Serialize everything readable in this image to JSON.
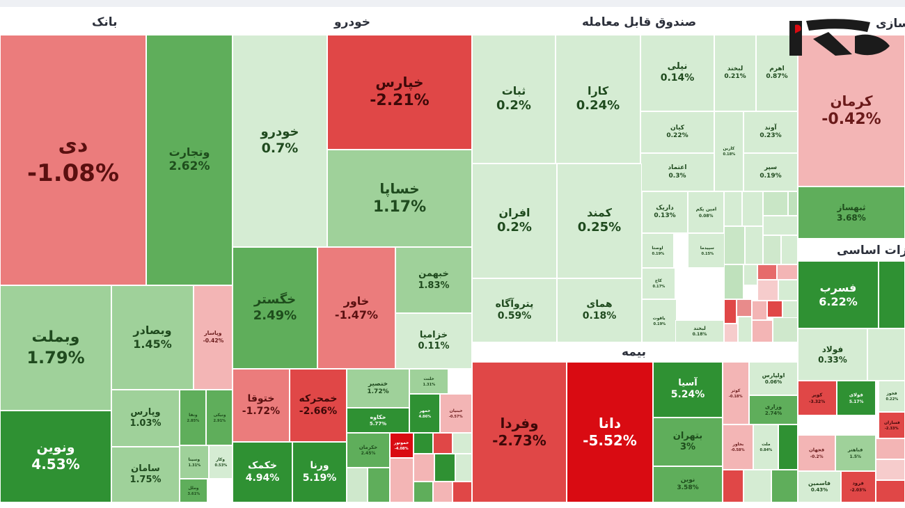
{
  "sectors": {
    "bank": "بانک",
    "khodro": "خودرو",
    "fund": "صندوق قابل معامله",
    "bimeh": "بیمه",
    "sazi": "سازی",
    "felezat": "فلزات اساسی"
  },
  "chart_data": {
    "type": "treemap",
    "colors": {
      "up_light": "#cfe8cc",
      "up_mid": "#9fd19a",
      "up_strong": "#5fae5b",
      "up_deep": "#2f9133",
      "down_light": "#f3b5b5",
      "down_mid": "#eb7c7c",
      "down_strong": "#e04747",
      "down_deep": "#d90b12"
    },
    "tiles": [
      {
        "sector": "bank",
        "name": "دی",
        "change": "-1.08%",
        "value": -1.08
      },
      {
        "sector": "bank",
        "name": "وتجارت",
        "change": "2.62%",
        "value": 2.62
      },
      {
        "sector": "bank",
        "name": "وبملت",
        "change": "1.79%",
        "value": 1.79
      },
      {
        "sector": "bank",
        "name": "وبصادر",
        "change": "1.45%",
        "value": 1.45
      },
      {
        "sector": "bank",
        "name": "وپاسار",
        "change": "-0.42%",
        "value": -0.42
      },
      {
        "sector": "bank",
        "name": "ونوین",
        "change": "4.53%",
        "value": 4.53
      },
      {
        "sector": "bank",
        "name": "وپارس",
        "change": "1.03%",
        "value": 1.03
      },
      {
        "sector": "bank",
        "name": "ونفا",
        "change": "2.85%",
        "value": 2.85
      },
      {
        "sector": "bank",
        "name": "ونیکی",
        "change": "2.91%",
        "value": 2.91
      },
      {
        "sector": "bank",
        "name": "وسینا",
        "change": "1.31%",
        "value": 1.31
      },
      {
        "sector": "bank",
        "name": "وکار",
        "change": "0.53%",
        "value": 0.53
      },
      {
        "sector": "bank",
        "name": "سامان",
        "change": "1.75%",
        "value": 1.75
      },
      {
        "sector": "bank",
        "name": "وملل",
        "change": "3.61%",
        "value": 3.61
      },
      {
        "sector": "khodro",
        "name": "خودرو",
        "change": "0.7%",
        "value": 0.7
      },
      {
        "sector": "khodro",
        "name": "خپارس",
        "change": "-2.21%",
        "value": -2.21
      },
      {
        "sector": "khodro",
        "name": "خساپا",
        "change": "1.17%",
        "value": 1.17
      },
      {
        "sector": "khodro",
        "name": "خگستر",
        "change": "2.49%",
        "value": 2.49
      },
      {
        "sector": "khodro",
        "name": "خاور",
        "change": "-1.47%",
        "value": -1.47
      },
      {
        "sector": "khodro",
        "name": "خبهمن",
        "change": "1.83%",
        "value": 1.83
      },
      {
        "sector": "khodro",
        "name": "خزامیا",
        "change": "0.11%",
        "value": 0.11
      },
      {
        "sector": "khodro",
        "name": "ختوقا",
        "change": "-1.72%",
        "value": -1.72
      },
      {
        "sector": "khodro",
        "name": "خمحرکه",
        "change": "-2.66%",
        "value": -2.66
      },
      {
        "sector": "khodro",
        "name": "خکمک",
        "change": "4.94%",
        "value": 4.94
      },
      {
        "sector": "khodro",
        "name": "ورنا",
        "change": "5.19%",
        "value": 5.19
      },
      {
        "sector": "khodro",
        "name": "خنصیر",
        "change": "1.72%",
        "value": 1.72
      },
      {
        "sector": "khodro",
        "name": "خلنت",
        "change": "1.31%",
        "value": 1.31
      },
      {
        "sector": "khodro",
        "name": "خکاوه",
        "change": "5.77%",
        "value": 5.77
      },
      {
        "sector": "khodro",
        "name": "خمهر",
        "change": "4.86%",
        "value": 4.86
      },
      {
        "sector": "khodro",
        "name": "خبنیان",
        "change": "-0.57%",
        "value": -0.57
      },
      {
        "sector": "khodro",
        "name": "خکرمان",
        "change": "2.45%",
        "value": 2.45
      },
      {
        "sector": "khodro",
        "name": "خموتور",
        "change": "-4.08%",
        "value": -4.08
      },
      {
        "sector": "fund",
        "name": "ثبات",
        "change": "0.2%",
        "value": 0.2
      },
      {
        "sector": "fund",
        "name": "کارا",
        "change": "0.24%",
        "value": 0.24
      },
      {
        "sector": "fund",
        "name": "نیلی",
        "change": "0.14%",
        "value": 0.14
      },
      {
        "sector": "fund",
        "name": "لبخند",
        "change": "0.21%",
        "value": 0.21
      },
      {
        "sector": "fund",
        "name": "اهرم",
        "change": "0.87%",
        "value": 0.87
      },
      {
        "sector": "fund",
        "name": "کیان",
        "change": "0.22%",
        "value": 0.22
      },
      {
        "sector": "fund",
        "name": "آوند",
        "change": "0.23%",
        "value": 0.23
      },
      {
        "sector": "fund",
        "name": "کارین",
        "change": "0.18%",
        "value": 0.18
      },
      {
        "sector": "fund",
        "name": "اعتماد",
        "change": "0.3%",
        "value": 0.3
      },
      {
        "sector": "fund",
        "name": "سپر",
        "change": "0.19%",
        "value": 0.19
      },
      {
        "sector": "fund",
        "name": "افران",
        "change": "0.2%",
        "value": 0.2
      },
      {
        "sector": "fund",
        "name": "کمند",
        "change": "0.25%",
        "value": 0.25
      },
      {
        "sector": "fund",
        "name": "داریک",
        "change": "0.13%",
        "value": 0.13
      },
      {
        "sector": "fund",
        "name": "امین یکم",
        "change": "0.08%",
        "value": 0.08
      },
      {
        "sector": "fund",
        "name": "اوصتا",
        "change": "0.19%",
        "value": 0.19
      },
      {
        "sector": "fund",
        "name": "سپیدما",
        "change": "0.15%",
        "value": 0.15
      },
      {
        "sector": "fund",
        "name": "کاج",
        "change": "0.17%",
        "value": 0.17
      },
      {
        "sector": "fund",
        "name": "یاقوت",
        "change": "0.19%",
        "value": 0.19
      },
      {
        "sector": "fund",
        "name": "لبخند",
        "change": "0.18%",
        "value": 0.18
      },
      {
        "sector": "fund",
        "name": "پتروآگاه",
        "change": "0.59%",
        "value": 0.59
      },
      {
        "sector": "fund",
        "name": "همای",
        "change": "0.18%",
        "value": 0.18
      },
      {
        "sector": "bimeh",
        "name": "وفردا",
        "change": "-2.73%",
        "value": -2.73
      },
      {
        "sector": "bimeh",
        "name": "دانا",
        "change": "-5.52%",
        "value": -5.52
      },
      {
        "sector": "bimeh",
        "name": "آسیا",
        "change": "5.24%",
        "value": 5.24
      },
      {
        "sector": "bimeh",
        "name": "کوثر",
        "change": "-0.18%",
        "value": -0.18
      },
      {
        "sector": "bimeh",
        "name": "اولپارس",
        "change": "0.06%",
        "value": 0.06
      },
      {
        "sector": "bimeh",
        "name": "وزاری",
        "change": "2.74%",
        "value": 2.74
      },
      {
        "sector": "bimeh",
        "name": "بتهران",
        "change": "3%",
        "value": 3
      },
      {
        "sector": "bimeh",
        "name": "بخاور",
        "change": "-0.58%",
        "value": -0.58
      },
      {
        "sector": "bimeh",
        "name": "ملت",
        "change": "0.84%",
        "value": 0.84
      },
      {
        "sector": "bimeh",
        "name": "نوین",
        "change": "3.58%",
        "value": 3.58
      },
      {
        "sector": "sazi",
        "name": "کرمان",
        "change": "-0.42%",
        "value": -0.42
      },
      {
        "sector": "sazi",
        "name": "ثبهساز",
        "change": "3.68%",
        "value": 3.68
      },
      {
        "sector": "felezat",
        "name": "فسرب",
        "change": "6.22%",
        "value": 6.22
      },
      {
        "sector": "felezat",
        "name": "فولاد",
        "change": "0.33%",
        "value": 0.33
      },
      {
        "sector": "felezat",
        "name": "فخوز",
        "change": "0.22%",
        "value": 0.22
      },
      {
        "sector": "felezat",
        "name": "کویر",
        "change": "-3.32%",
        "value": -3.32
      },
      {
        "sector": "felezat",
        "name": "فولای",
        "change": "5.17%",
        "value": 5.17
      },
      {
        "sector": "felezat",
        "name": "فسازان",
        "change": "-2.33%",
        "value": -2.33
      },
      {
        "sector": "felezat",
        "name": "فجهان",
        "change": "-0.2%",
        "value": -0.2
      },
      {
        "sector": "felezat",
        "name": "فباهنر",
        "change": "1.5%",
        "value": 1.5
      },
      {
        "sector": "felezat",
        "name": "فاسمین",
        "change": "0.43%",
        "value": 0.43
      },
      {
        "sector": "felezat",
        "name": "فرود",
        "change": "-2.03%",
        "value": -2.03
      }
    ]
  }
}
